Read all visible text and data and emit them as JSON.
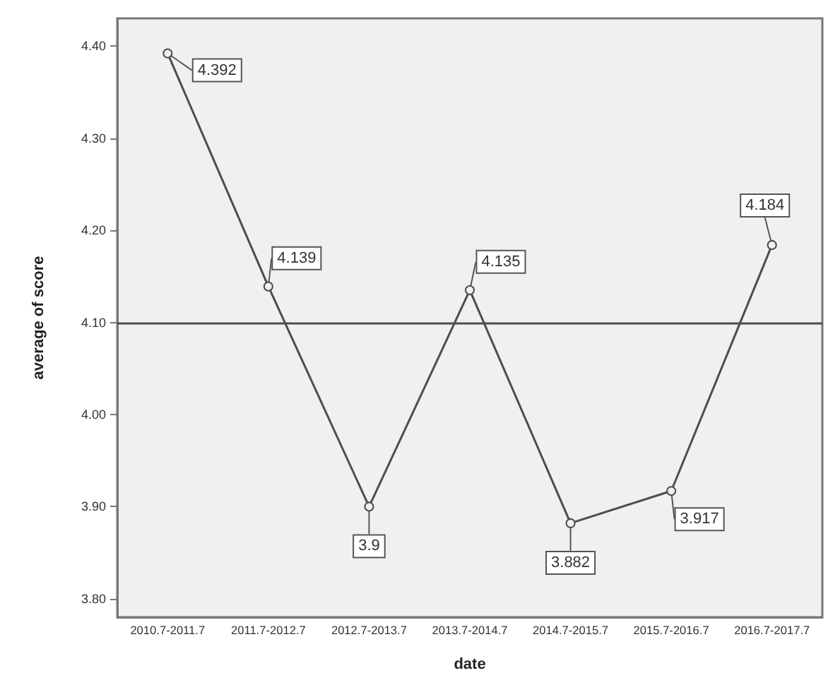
{
  "chart_data": {
    "type": "line",
    "xlabel": "date",
    "ylabel": "average of score",
    "categories": [
      "2010.7-2011.7",
      "2011.7-2012.7",
      "2012.7-2013.7",
      "2013.7-2014.7",
      "2014.7-2015.7",
      "2015.7-2016.7",
      "2016.7-2017.7"
    ],
    "series": [
      {
        "color": "#4d4d4d",
        "values": [
          4.392,
          4.139,
          3.9,
          4.135,
          3.882,
          3.917,
          4.184
        ]
      }
    ],
    "ylim": [
      3.78,
      4.43
    ],
    "yticks": [
      {
        "value": 3.8,
        "label": "3.80"
      },
      {
        "value": 3.9,
        "label": "3.90"
      },
      {
        "value": 4.0,
        "label": "4.00"
      },
      {
        "value": 4.1,
        "label": "4.10"
      },
      {
        "value": 4.2,
        "label": "4.20"
      },
      {
        "value": 4.3,
        "label": "4.30"
      },
      {
        "value": 4.4,
        "label": "4.40"
      }
    ],
    "ref_lines": [
      {
        "axis": "y",
        "value": 4.1,
        "color": "#4d4d4d"
      }
    ],
    "data_labels": true,
    "marker": "circle",
    "line_style": "solid",
    "grid": false
  }
}
